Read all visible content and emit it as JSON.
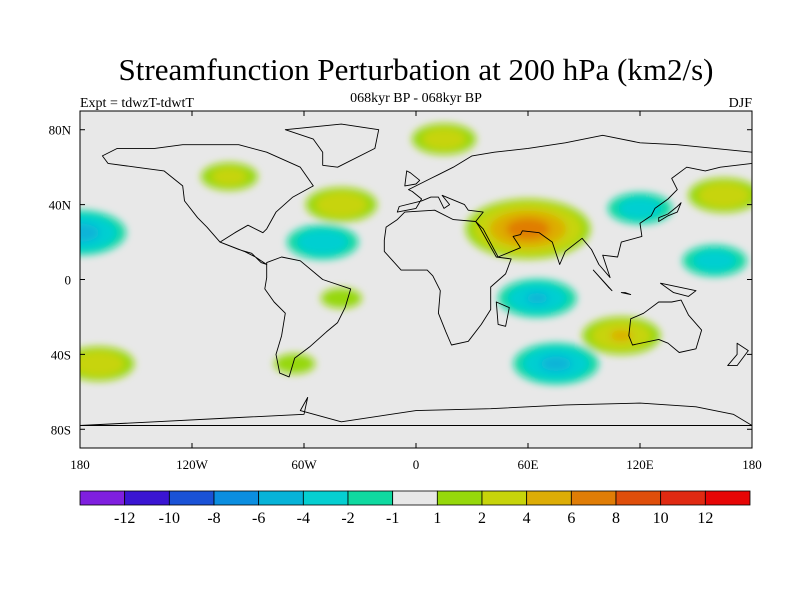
{
  "chart_data": {
    "type": "heatmap",
    "title": "Streamfunction Perturbation at 200 hPa (km2/s)",
    "left_label": "Expt = tdwzT-tdwtT",
    "center_label": "068kyr BP - 068kyr BP",
    "right_label": "DJF",
    "projection": "cylindrical-equidistant",
    "xlim": [
      -180,
      180
    ],
    "ylim": [
      -90,
      90
    ],
    "x_ticks": [
      {
        "value": -180,
        "label": "180"
      },
      {
        "value": -120,
        "label": "120W"
      },
      {
        "value": -60,
        "label": "60W"
      },
      {
        "value": 0,
        "label": "0"
      },
      {
        "value": 60,
        "label": "60E"
      },
      {
        "value": 120,
        "label": "120E"
      },
      {
        "value": 180,
        "label": "180"
      }
    ],
    "y_ticks": [
      {
        "value": 80,
        "label": "80N"
      },
      {
        "value": 40,
        "label": "40N"
      },
      {
        "value": 0,
        "label": "0"
      },
      {
        "value": -40,
        "label": "40S"
      },
      {
        "value": -80,
        "label": "80S"
      }
    ],
    "contour_levels": [
      -12,
      -10,
      -8,
      -6,
      -4,
      -2,
      -1,
      1,
      2,
      4,
      6,
      8,
      10,
      12
    ],
    "colorbar_labels": [
      "-12",
      "-10",
      "-8",
      "-6",
      "-4",
      "-2",
      "-1",
      "1",
      "2",
      "4",
      "6",
      "8",
      "10",
      "12"
    ],
    "colors": [
      "#7f1fdf",
      "#3a15d2",
      "#1a52d6",
      "#0b8ee0",
      "#07b3d8",
      "#05cfd1",
      "#0fd9a0",
      "#e8e8e8",
      "#96d80a",
      "#c7d40a",
      "#ddad06",
      "#e07d06",
      "#df4e0a",
      "#e02a12",
      "#e60505"
    ],
    "anomaly_centers": [
      {
        "lon": 60,
        "lat": 27,
        "value": 7.5,
        "region": "Middle East / South Asia"
      },
      {
        "lon": -40,
        "lat": 40,
        "value": 3.5,
        "region": "North Atlantic"
      },
      {
        "lon": 15,
        "lat": 75,
        "value": 3.0,
        "region": "Arctic / Scandinavia"
      },
      {
        "lon": 165,
        "lat": 45,
        "value": 3.5,
        "region": "North Pacific"
      },
      {
        "lon": -170,
        "lat": -45,
        "value": 3.5,
        "region": "South Pacific"
      },
      {
        "lon": 110,
        "lat": -30,
        "value": 4.0,
        "region": "Indian Ocean / Australia"
      },
      {
        "lon": -100,
        "lat": 55,
        "value": 2.5,
        "region": "Canada"
      },
      {
        "lon": -65,
        "lat": -45,
        "value": 1.5,
        "region": "Patagonia"
      },
      {
        "lon": -40,
        "lat": -10,
        "value": 1.5,
        "region": "South Atlantic"
      },
      {
        "lon": -180,
        "lat": 25,
        "value": -5.0,
        "region": "Central Pacific"
      },
      {
        "lon": -50,
        "lat": 20,
        "value": -3.5,
        "region": "Tropical Atlantic"
      },
      {
        "lon": 120,
        "lat": 38,
        "value": -3.0,
        "region": "East Asia"
      },
      {
        "lon": 65,
        "lat": -10,
        "value": -4.0,
        "region": "Tropical Indian Ocean"
      },
      {
        "lon": 75,
        "lat": -45,
        "value": -4.5,
        "region": "Southern Indian Ocean"
      },
      {
        "lon": 160,
        "lat": 10,
        "value": -3.0,
        "region": "West Pacific"
      }
    ]
  }
}
